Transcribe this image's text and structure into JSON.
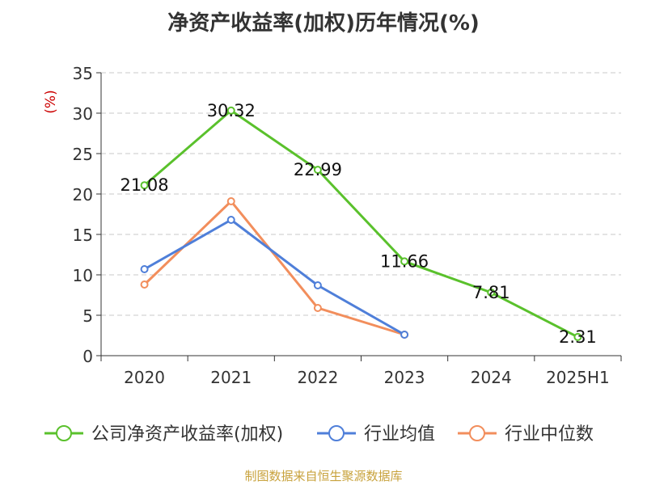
{
  "chart_data": {
    "type": "line",
    "title": "净资产收益率(加权)历年情况(%)",
    "ylabel": "(%)",
    "categories": [
      "2020",
      "2021",
      "2022",
      "2023",
      "2024",
      "2025H1"
    ],
    "ylim": [
      0,
      35
    ],
    "yticks": [
      0,
      5,
      10,
      15,
      20,
      25,
      30,
      35
    ],
    "grid": true,
    "legend_position": "bottom",
    "series": [
      {
        "name": "公司净资产收益率(加权)",
        "color": "#5ac12c",
        "values": [
          21.08,
          30.32,
          22.99,
          11.66,
          7.81,
          2.31
        ],
        "labels": [
          "21.08",
          "30.32",
          "22.99",
          "11.66",
          "7.81",
          "2.31"
        ]
      },
      {
        "name": "行业均值",
        "color": "#4f7fd9",
        "values": [
          10.7,
          16.8,
          8.7,
          2.6,
          null,
          null
        ]
      },
      {
        "name": "行业中位数",
        "color": "#f28e5c",
        "values": [
          8.8,
          19.1,
          5.9,
          2.6,
          null,
          null
        ]
      }
    ]
  },
  "source": "制图数据来自恒生聚源数据库"
}
